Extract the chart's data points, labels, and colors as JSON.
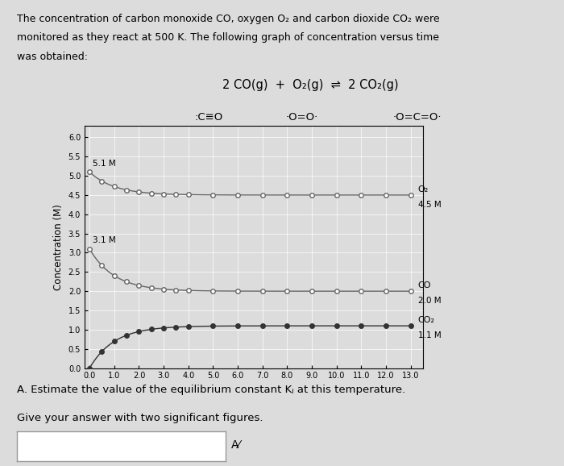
{
  "ylabel": "Concentration (M)",
  "xlim": [
    -0.2,
    13.5
  ],
  "ylim": [
    0.0,
    6.3
  ],
  "xticks": [
    0.0,
    1.0,
    2.0,
    3.0,
    4.0,
    5.0,
    6.0,
    7.0,
    8.0,
    9.0,
    10.0,
    11.0,
    12.0,
    13.0
  ],
  "yticks": [
    0.0,
    0.5,
    1.0,
    1.5,
    2.0,
    2.5,
    3.0,
    3.5,
    4.0,
    4.5,
    5.0,
    5.5,
    6.0
  ],
  "o2_initial": 5.1,
  "o2_final": 4.5,
  "co_initial": 3.1,
  "co_final": 2.0,
  "co2_initial": 0.0,
  "co2_final": 1.1,
  "decay_k": 1.0,
  "line_color": "#666666",
  "co2_color": "#333333",
  "bg_color": "#dcdcdc",
  "grid_color": "#ffffff",
  "fig_width": 7.0,
  "fig_height": 5.78,
  "dpi": 100
}
